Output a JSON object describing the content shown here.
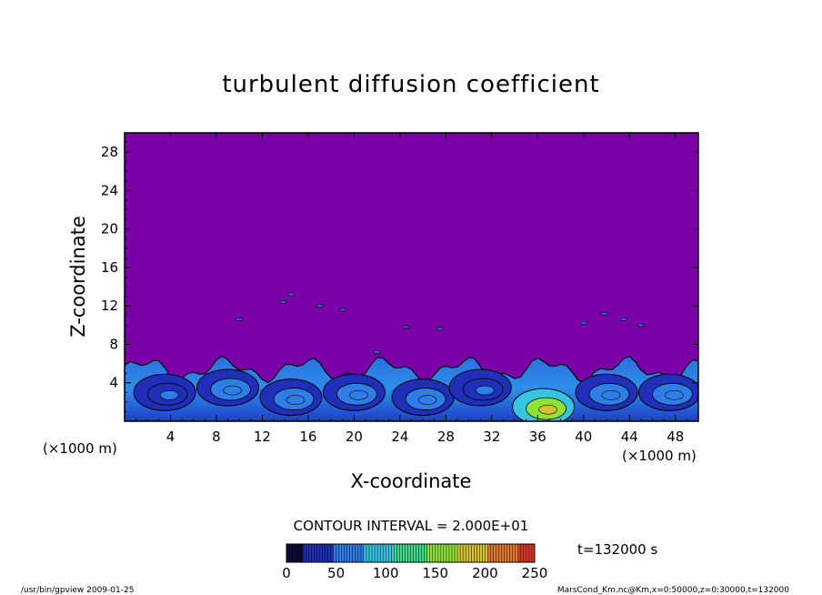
{
  "chart_data": {
    "type": "heatmap",
    "title": "turbulent diffusion coefficient",
    "xlabel": "X-coordinate",
    "ylabel": "Z-coordinate",
    "x_unit": "(×1000 m)",
    "y_unit": "(×1000 m)",
    "xlim": [
      0,
      50
    ],
    "ylim": [
      0,
      30
    ],
    "x_ticks": [
      4,
      8,
      12,
      16,
      20,
      24,
      28,
      32,
      36,
      40,
      44,
      48
    ],
    "y_ticks": [
      4,
      8,
      12,
      16,
      20,
      24,
      28
    ],
    "contour_interval": "CONTOUR INTERVAL = 2.000E+01",
    "time_label": "t=132000 s",
    "colorbar": {
      "min": 0,
      "max": 250,
      "ticks": [
        0,
        50,
        100,
        150,
        200,
        250
      ],
      "colors": [
        "#0a0a3a",
        "#1f2fb8",
        "#2f7de6",
        "#36c4e0",
        "#3fd98c",
        "#8fe23a",
        "#d8c030",
        "#e07a28",
        "#d83a2a"
      ]
    },
    "background_color": "#7b00a8",
    "turbulent_layer_top": 6,
    "eddies": [
      {
        "x": 3.5,
        "z": 3.0,
        "level": 40
      },
      {
        "x": 9.0,
        "z": 3.5,
        "level": 55
      },
      {
        "x": 14.5,
        "z": 2.5,
        "level": 60
      },
      {
        "x": 20.0,
        "z": 3.0,
        "level": 50
      },
      {
        "x": 26.0,
        "z": 2.5,
        "level": 60
      },
      {
        "x": 31.0,
        "z": 3.5,
        "level": 45
      },
      {
        "x": 36.5,
        "z": 1.5,
        "level": 160
      },
      {
        "x": 42.0,
        "z": 3.0,
        "level": 60
      },
      {
        "x": 47.5,
        "z": 3.0,
        "level": 55
      }
    ]
  },
  "footer": {
    "left": "/usr/bin/gpview   2009-01-25",
    "right": "MarsCond_Km.nc@Km,x=0:50000,z=0:30000,t=132000"
  }
}
